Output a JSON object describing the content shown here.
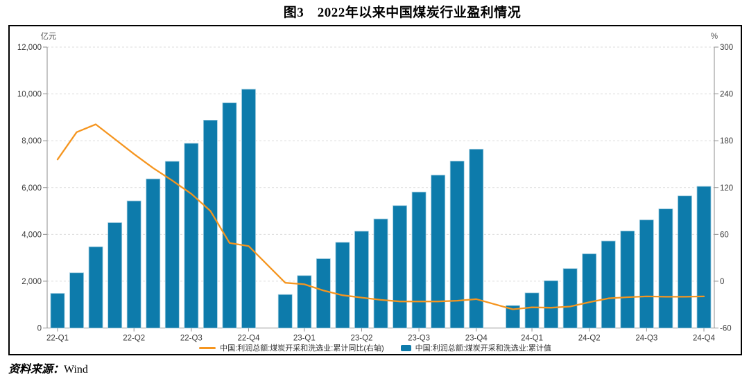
{
  "title": "图3　2022年以来中国煤炭行业盈利情况",
  "source": {
    "label": "资料来源：",
    "value": "Wind"
  },
  "legend": {
    "line_label": "中国:利润总额:煤炭开采和洗选业:累计同比(右轴)",
    "bar_label": "中国:利润总额:煤炭开采和洗选业:累计值"
  },
  "colors": {
    "bar": "#0D7BAB",
    "bar_edge": "#9FCCDF",
    "line": "#F5951F",
    "grid": "#DCDCDC",
    "axis": "#8C8C8C",
    "tick_text": "#3A3A3A",
    "unit_text": "#555555"
  },
  "chart_data": {
    "type": "bar",
    "subtype": "bar+line dual axis",
    "x": [
      "2022-02",
      "2022-03",
      "2022-04",
      "2022-05",
      "2022-06",
      "2022-07",
      "2022-08",
      "2022-09",
      "2022-10",
      "2022-11",
      "2022-12",
      "2023-02",
      "2023-03",
      "2023-04",
      "2023-05",
      "2023-06",
      "2023-07",
      "2023-08",
      "2023-09",
      "2023-10",
      "2023-11",
      "2023-12",
      "2024-02",
      "2024-03",
      "2024-04",
      "2024-05",
      "2024-06",
      "2024-07",
      "2024-08",
      "2024-09",
      "2024-10",
      "2024-11",
      "2024-12"
    ],
    "x_tick_labels": [
      "22-Q1",
      "22-Q2",
      "22-Q3",
      "22-Q4",
      "23-Q1",
      "23-Q2",
      "23-Q3",
      "23-Q4",
      "24-Q1",
      "24-Q2",
      "24-Q3",
      "24-Q4"
    ],
    "x_tick_bar_index": [
      0,
      4,
      7,
      10,
      12,
      15,
      18,
      21,
      23,
      26,
      29,
      32
    ],
    "series": [
      {
        "name": "中国:利润总额:煤炭开采和洗选业:累计值",
        "type": "bar",
        "axis": "left",
        "values": [
          1480,
          2360,
          3470,
          4500,
          5430,
          6370,
          7120,
          7890,
          8880,
          9620,
          10200,
          1430,
          2240,
          2960,
          3660,
          4135,
          4660,
          5230,
          5810,
          6530,
          7130,
          7640,
          960,
          1500,
          2020,
          2540,
          3170,
          3715,
          4145,
          4620,
          5090,
          5645,
          6050
        ]
      },
      {
        "name": "中国:利润总额:煤炭开采和洗选业:累计同比(右轴)",
        "type": "line",
        "axis": "right",
        "values": [
          156,
          191,
          201,
          182,
          163,
          145,
          129,
          112,
          90,
          49,
          45,
          -2,
          -4,
          -12,
          -18,
          -21,
          -24,
          -26,
          -26,
          -26,
          -25,
          -23,
          -36,
          -33.5,
          -34,
          -32.5,
          -27,
          -22,
          -20.5,
          -19.5,
          -20,
          -20,
          -19.5
        ]
      }
    ],
    "left_axis": {
      "unit": "亿元",
      "min": 0,
      "max": 12000,
      "tick_values": [
        12000,
        10000,
        8000,
        6000,
        4000,
        2000,
        0
      ],
      "tick_labels": [
        "12,000",
        "10,000",
        "8,000",
        "6,000",
        "4,000",
        "2,000",
        "0"
      ]
    },
    "right_axis": {
      "unit": "%",
      "min": -60,
      "max": 300,
      "tick_values": [
        300,
        240,
        180,
        120,
        60,
        0,
        -60
      ],
      "tick_labels": [
        "300",
        "240",
        "180",
        "120",
        "60",
        "0",
        "-60"
      ]
    },
    "grid": "horizontal dashed",
    "legend_position": "bottom"
  }
}
